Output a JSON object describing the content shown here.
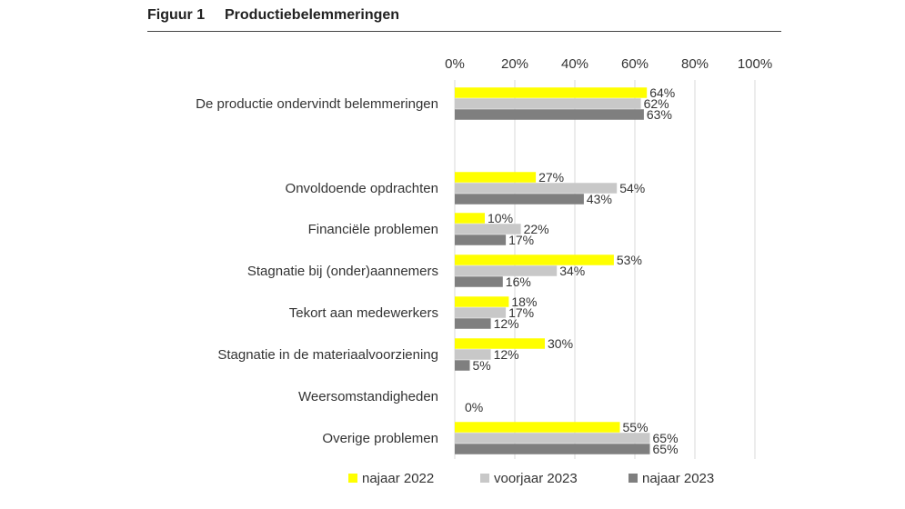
{
  "figure": {
    "label": "Figuur 1",
    "title": "Productiebelemmeringen"
  },
  "colors": {
    "najaar_2022": "#ffff00",
    "voorjaar_2023": "#c8c8c8",
    "najaar_2023": "#7f7f7f",
    "grid": "#d9d9d9",
    "text": "#333333"
  },
  "chart_data": {
    "type": "bar",
    "orientation": "horizontal",
    "categories": [
      "De productie ondervindt belemmeringen",
      "Onvoldoende opdrachten",
      "Financiële problemen",
      "Stagnatie bij (onder)aannemers",
      "Tekort aan medewerkers",
      "Stagnatie in de materiaalvoorziening",
      "Weersomstandigheden",
      "Overige problemen"
    ],
    "series": [
      {
        "name": "najaar 2022",
        "values": [
          64,
          27,
          10,
          53,
          18,
          30,
          0,
          55
        ]
      },
      {
        "name": "voorjaar 2023",
        "values": [
          62,
          54,
          22,
          34,
          17,
          12,
          0,
          65
        ]
      },
      {
        "name": "najaar 2023",
        "values": [
          63,
          43,
          17,
          16,
          12,
          5,
          0,
          65
        ]
      }
    ],
    "data_labels": [
      [
        "64%",
        "27%",
        "10%",
        "53%",
        "18%",
        "30%",
        "",
        "55%"
      ],
      [
        "62%",
        "54%",
        "22%",
        "34%",
        "17%",
        "12%",
        "",
        "65%"
      ],
      [
        "63%",
        "43%",
        "17%",
        "16%",
        "12%",
        "5%",
        "0%",
        "65%"
      ]
    ],
    "xlim": [
      0,
      100
    ],
    "xticks": [
      "0%",
      "20%",
      "40%",
      "60%",
      "80%",
      "100%"
    ],
    "xtick_values": [
      0,
      20,
      40,
      60,
      80,
      100
    ],
    "x_axis_position": "top",
    "grid": true,
    "legend": "bottom",
    "unit": "%"
  }
}
